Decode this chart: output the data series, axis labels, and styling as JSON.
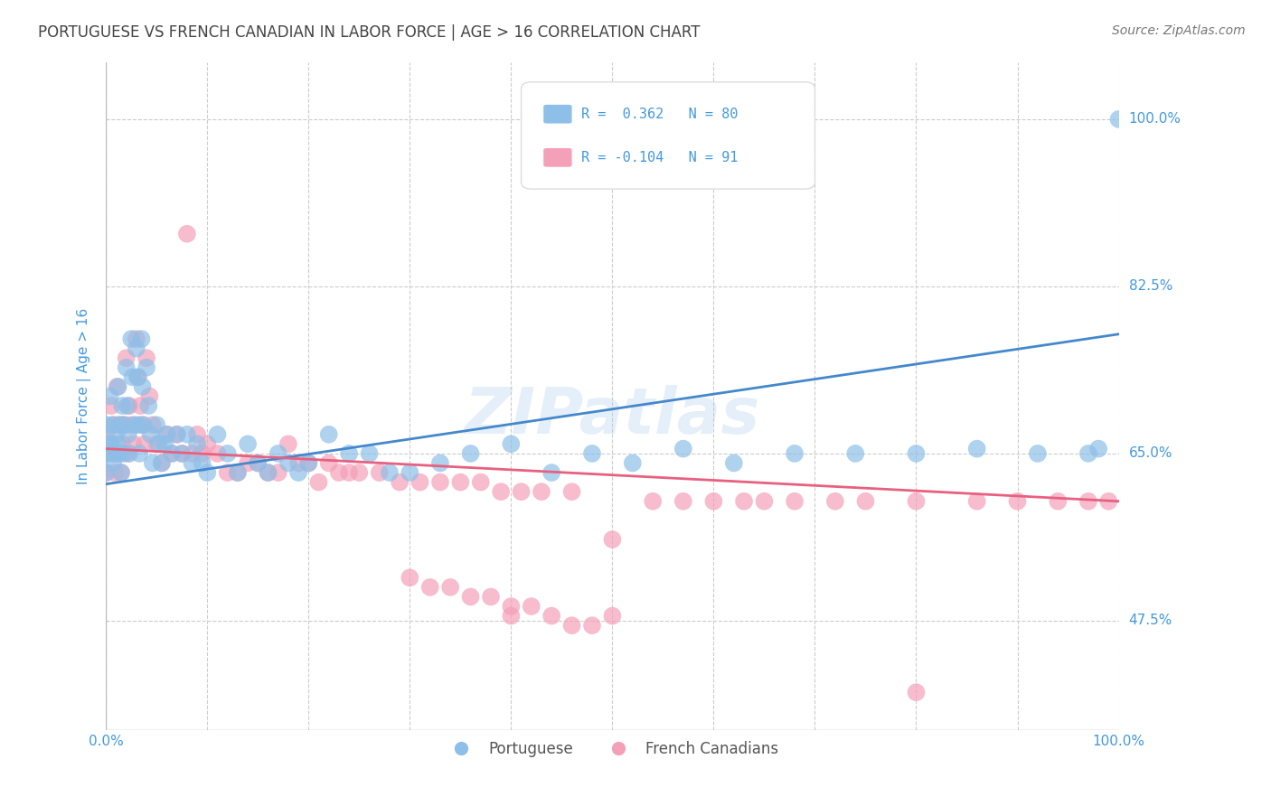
{
  "title": "PORTUGUESE VS FRENCH CANADIAN IN LABOR FORCE | AGE > 16 CORRELATION CHART",
  "source": "Source: ZipAtlas.com",
  "ylabel": "In Labor Force | Age > 16",
  "xlim": [
    0.0,
    1.0
  ],
  "ylim": [
    0.36,
    1.06
  ],
  "yticks": [
    0.475,
    0.65,
    0.825,
    1.0
  ],
  "ytick_labels": [
    "47.5%",
    "65.0%",
    "82.5%",
    "100.0%"
  ],
  "xtick_labels": [
    "0.0%",
    "100.0%"
  ],
  "xtick_pos": [
    0.0,
    1.0
  ],
  "watermark": "ZIPatlas",
  "blue_R": 0.362,
  "blue_N": 80,
  "pink_R": -0.104,
  "pink_N": 91,
  "blue_color": "#8DBFE8",
  "pink_color": "#F4A0B8",
  "blue_line_color": "#4488CC",
  "pink_line_color": "#E86080",
  "background_color": "#FFFFFF",
  "grid_color": "#CCCCCC",
  "title_color": "#444444",
  "source_color": "#777777",
  "axis_label_color": "#4499DD",
  "legend_value_color": "#4499DD",
  "legend_text_color": "#555555",
  "blue_line_x0": 0.0,
  "blue_line_y0": 0.618,
  "blue_line_x1": 1.0,
  "blue_line_y1": 0.775,
  "pink_line_x0": 0.0,
  "pink_line_y0": 0.655,
  "pink_line_x1": 1.0,
  "pink_line_y1": 0.6,
  "blue_x": [
    0.0,
    0.0,
    0.0,
    0.003,
    0.004,
    0.005,
    0.006,
    0.007,
    0.008,
    0.01,
    0.011,
    0.012,
    0.013,
    0.014,
    0.015,
    0.016,
    0.017,
    0.018,
    0.02,
    0.021,
    0.022,
    0.023,
    0.025,
    0.026,
    0.028,
    0.03,
    0.031,
    0.032,
    0.033,
    0.035,
    0.036,
    0.037,
    0.04,
    0.042,
    0.044,
    0.046,
    0.05,
    0.052,
    0.055,
    0.058,
    0.06,
    0.065,
    0.07,
    0.075,
    0.08,
    0.085,
    0.09,
    0.095,
    0.1,
    0.11,
    0.12,
    0.13,
    0.14,
    0.15,
    0.16,
    0.17,
    0.18,
    0.19,
    0.2,
    0.22,
    0.24,
    0.26,
    0.28,
    0.3,
    0.33,
    0.36,
    0.4,
    0.44,
    0.48,
    0.52,
    0.57,
    0.62,
    0.68,
    0.74,
    0.8,
    0.86,
    0.92,
    0.97,
    0.98,
    1.0
  ],
  "blue_y": [
    0.68,
    0.65,
    0.63,
    0.66,
    0.71,
    0.66,
    0.68,
    0.64,
    0.65,
    0.67,
    0.66,
    0.72,
    0.65,
    0.68,
    0.63,
    0.7,
    0.65,
    0.68,
    0.74,
    0.7,
    0.67,
    0.65,
    0.77,
    0.73,
    0.68,
    0.76,
    0.73,
    0.68,
    0.65,
    0.77,
    0.72,
    0.68,
    0.74,
    0.7,
    0.67,
    0.64,
    0.68,
    0.66,
    0.64,
    0.66,
    0.67,
    0.65,
    0.67,
    0.65,
    0.67,
    0.64,
    0.66,
    0.64,
    0.63,
    0.67,
    0.65,
    0.63,
    0.66,
    0.64,
    0.63,
    0.65,
    0.64,
    0.63,
    0.64,
    0.67,
    0.65,
    0.65,
    0.63,
    0.63,
    0.64,
    0.65,
    0.66,
    0.63,
    0.65,
    0.64,
    0.655,
    0.64,
    0.65,
    0.65,
    0.65,
    0.655,
    0.65,
    0.65,
    0.655,
    1.0
  ],
  "pink_x": [
    0.0,
    0.0,
    0.0,
    0.003,
    0.005,
    0.006,
    0.008,
    0.009,
    0.011,
    0.012,
    0.013,
    0.015,
    0.016,
    0.018,
    0.02,
    0.021,
    0.023,
    0.025,
    0.027,
    0.03,
    0.032,
    0.034,
    0.036,
    0.038,
    0.04,
    0.043,
    0.046,
    0.05,
    0.055,
    0.06,
    0.065,
    0.07,
    0.075,
    0.08,
    0.085,
    0.09,
    0.095,
    0.1,
    0.11,
    0.12,
    0.13,
    0.14,
    0.15,
    0.16,
    0.17,
    0.18,
    0.19,
    0.2,
    0.21,
    0.22,
    0.23,
    0.24,
    0.25,
    0.27,
    0.29,
    0.31,
    0.33,
    0.35,
    0.37,
    0.39,
    0.41,
    0.43,
    0.46,
    0.5,
    0.5,
    0.54,
    0.57,
    0.6,
    0.63,
    0.65,
    0.68,
    0.72,
    0.75,
    0.8,
    0.8,
    0.86,
    0.9,
    0.94,
    0.97,
    0.99,
    0.3,
    0.32,
    0.34,
    0.36,
    0.38,
    0.4,
    0.4,
    0.42,
    0.44,
    0.46,
    0.48
  ],
  "pink_y": [
    0.67,
    0.65,
    0.63,
    0.66,
    0.7,
    0.65,
    0.68,
    0.63,
    0.72,
    0.65,
    0.68,
    0.63,
    0.66,
    0.68,
    0.75,
    0.65,
    0.7,
    0.68,
    0.66,
    0.77,
    0.73,
    0.7,
    0.68,
    0.66,
    0.75,
    0.71,
    0.68,
    0.66,
    0.64,
    0.67,
    0.65,
    0.67,
    0.65,
    0.88,
    0.65,
    0.67,
    0.65,
    0.66,
    0.65,
    0.63,
    0.63,
    0.64,
    0.64,
    0.63,
    0.63,
    0.66,
    0.64,
    0.64,
    0.62,
    0.64,
    0.63,
    0.63,
    0.63,
    0.63,
    0.62,
    0.62,
    0.62,
    0.62,
    0.62,
    0.61,
    0.61,
    0.61,
    0.61,
    0.56,
    0.48,
    0.6,
    0.6,
    0.6,
    0.6,
    0.6,
    0.6,
    0.6,
    0.6,
    0.6,
    0.4,
    0.6,
    0.6,
    0.6,
    0.6,
    0.6,
    0.52,
    0.51,
    0.51,
    0.5,
    0.5,
    0.49,
    0.48,
    0.49,
    0.48,
    0.47,
    0.47
  ]
}
